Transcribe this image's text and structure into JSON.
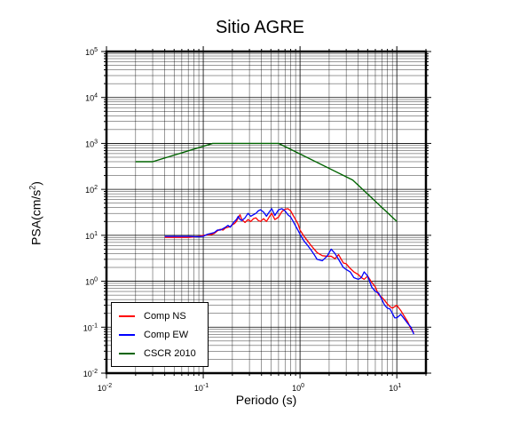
{
  "chart_data": {
    "type": "line",
    "title": "Sitio AGRE",
    "xlabel": "Periodo (s)",
    "ylabel": "PSA(cm/s",
    "ylabel_exp": "2",
    "ylabel_tail": ")",
    "x_scale": "log",
    "y_scale": "log",
    "xlim": [
      0.01,
      20
    ],
    "ylim": [
      0.01,
      100000
    ],
    "grid": true,
    "legend_placement": "bottom-left",
    "x_ticks": [
      {
        "base": "10",
        "exp": "-2",
        "value": 0.01
      },
      {
        "base": "10",
        "exp": "-1",
        "value": 0.1
      },
      {
        "base": "10",
        "exp": "0",
        "value": 1
      },
      {
        "base": "10",
        "exp": "1",
        "value": 10
      }
    ],
    "y_ticks": [
      {
        "base": "10",
        "exp": "-2",
        "value": 0.01
      },
      {
        "base": "10",
        "exp": "-1",
        "value": 0.1
      },
      {
        "base": "10",
        "exp": "0",
        "value": 1
      },
      {
        "base": "10",
        "exp": "1",
        "value": 10
      },
      {
        "base": "10",
        "exp": "2",
        "value": 100
      },
      {
        "base": "10",
        "exp": "3",
        "value": 1000
      },
      {
        "base": "10",
        "exp": "4",
        "value": 10000
      },
      {
        "base": "10",
        "exp": "5",
        "value": 100000
      }
    ],
    "series": [
      {
        "name": "Comp NS",
        "color": "#ff0000",
        "x": [
          0.04,
          0.05,
          0.06,
          0.07,
          0.08,
          0.09,
          0.1,
          0.11,
          0.12,
          0.13,
          0.14,
          0.15,
          0.16,
          0.17,
          0.18,
          0.19,
          0.2,
          0.21,
          0.22,
          0.23,
          0.24,
          0.25,
          0.27,
          0.29,
          0.31,
          0.33,
          0.35,
          0.37,
          0.39,
          0.42,
          0.45,
          0.48,
          0.51,
          0.55,
          0.6,
          0.65,
          0.7,
          0.75,
          0.8,
          0.85,
          0.9,
          0.95,
          1.0,
          1.1,
          1.2,
          1.3,
          1.4,
          1.5,
          1.7,
          1.9,
          2.1,
          2.3,
          2.5,
          2.8,
          3.0,
          3.3,
          3.6,
          4.0,
          4.3,
          4.6,
          5.0,
          5.5,
          6.0,
          6.5,
          7.0,
          7.5,
          8.0,
          8.5,
          9.0,
          9.5,
          10.0,
          11.0,
          12.0,
          13.0,
          14.0,
          15.0
        ],
        "y": [
          9.0,
          9.0,
          9.0,
          9.0,
          9.2,
          9.5,
          10.0,
          10.2,
          10.3,
          11.0,
          12.5,
          13.5,
          13.0,
          14.5,
          15.0,
          15.5,
          17.0,
          18.0,
          20.0,
          24.0,
          28.0,
          22.0,
          19.0,
          22.0,
          20.0,
          23.0,
          24.0,
          21.0,
          20.0,
          23.0,
          20.0,
          25.0,
          30.0,
          22.0,
          25.0,
          33.0,
          37.0,
          38.0,
          34.0,
          27.0,
          22.0,
          18.0,
          13.0,
          9.5,
          7.5,
          6.0,
          5.0,
          4.2,
          3.6,
          3.5,
          3.5,
          3.1,
          3.8,
          2.5,
          2.4,
          1.9,
          1.6,
          1.4,
          1.2,
          1.1,
          1.3,
          0.95,
          0.75,
          0.5,
          0.45,
          0.38,
          0.32,
          0.28,
          0.26,
          0.28,
          0.3,
          0.23,
          0.17,
          0.13,
          0.09,
          0.078
        ]
      },
      {
        "name": "Comp EW",
        "color": "#0000ff",
        "x": [
          0.04,
          0.05,
          0.06,
          0.07,
          0.08,
          0.09,
          0.1,
          0.11,
          0.12,
          0.13,
          0.14,
          0.15,
          0.16,
          0.17,
          0.18,
          0.19,
          0.2,
          0.21,
          0.22,
          0.23,
          0.24,
          0.25,
          0.27,
          0.29,
          0.31,
          0.33,
          0.35,
          0.37,
          0.39,
          0.42,
          0.45,
          0.48,
          0.51,
          0.55,
          0.6,
          0.65,
          0.7,
          0.75,
          0.8,
          0.85,
          0.9,
          0.95,
          1.0,
          1.1,
          1.2,
          1.3,
          1.4,
          1.5,
          1.7,
          1.9,
          2.1,
          2.3,
          2.5,
          2.8,
          3.0,
          3.3,
          3.6,
          4.0,
          4.3,
          4.6,
          5.0,
          5.5,
          6.0,
          6.5,
          7.0,
          7.5,
          8.0,
          8.5,
          9.0,
          9.5,
          10.0,
          11.0,
          12.0,
          13.0,
          14.0,
          15.0
        ],
        "y": [
          9.5,
          9.5,
          9.5,
          9.5,
          9.4,
          9.3,
          9.5,
          10.5,
          11.0,
          11.5,
          13.0,
          13.0,
          14.0,
          15.0,
          16.5,
          15.0,
          17.5,
          20.0,
          22.0,
          26.0,
          22.0,
          21.0,
          24.0,
          30.0,
          26.0,
          28.0,
          30.0,
          34.0,
          36.0,
          32.0,
          26.0,
          32.0,
          38.0,
          27.0,
          36.0,
          38.0,
          34.0,
          28.0,
          25.0,
          20.0,
          16.0,
          13.0,
          10.5,
          7.5,
          6.0,
          4.8,
          3.8,
          3.0,
          2.8,
          3.5,
          5.0,
          4.0,
          3.0,
          2.0,
          1.8,
          1.6,
          1.2,
          1.1,
          1.2,
          1.6,
          1.3,
          0.75,
          0.6,
          0.55,
          0.4,
          0.3,
          0.26,
          0.25,
          0.2,
          0.16,
          0.16,
          0.19,
          0.15,
          0.12,
          0.1,
          0.07
        ]
      },
      {
        "name": "CSCR 2010",
        "color": "#006400",
        "x": [
          0.02,
          0.03,
          0.125,
          0.5,
          0.6,
          3.5,
          10.0
        ],
        "y": [
          400,
          400,
          1000,
          1000,
          1000,
          160,
          20
        ]
      }
    ]
  }
}
